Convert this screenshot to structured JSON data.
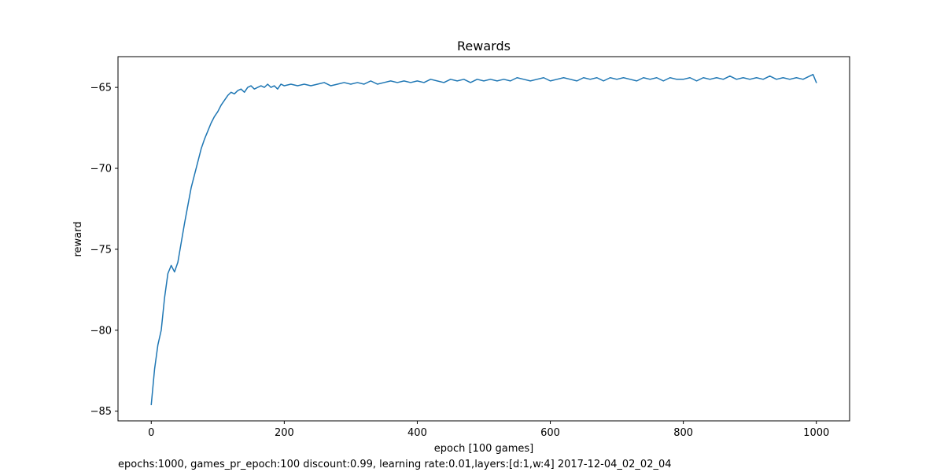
{
  "chart_data": {
    "type": "line",
    "title": "Rewards",
    "xlabel": "epoch [100 games]",
    "ylabel": "reward",
    "xlim": [
      -50,
      1050
    ],
    "ylim": [
      -85.6,
      -63.1
    ],
    "xticks": [
      0,
      200,
      400,
      600,
      800,
      1000
    ],
    "yticks": [
      -85,
      -80,
      -75,
      -70,
      -65
    ],
    "xtick_labels": [
      "0",
      "200",
      "400",
      "600",
      "800",
      "1000"
    ],
    "ytick_labels": [
      "−85",
      "−80",
      "−75",
      "−70",
      "−65"
    ],
    "grid": false,
    "series": [
      {
        "color": "#1f77b4",
        "x": [
          0,
          5,
          10,
          15,
          20,
          25,
          30,
          35,
          40,
          45,
          50,
          55,
          60,
          65,
          70,
          75,
          80,
          85,
          90,
          95,
          100,
          105,
          110,
          115,
          120,
          125,
          130,
          135,
          140,
          145,
          150,
          155,
          160,
          165,
          170,
          175,
          180,
          185,
          190,
          195,
          200,
          210,
          220,
          230,
          240,
          250,
          260,
          270,
          280,
          290,
          300,
          310,
          320,
          330,
          340,
          350,
          360,
          370,
          380,
          390,
          400,
          410,
          420,
          430,
          440,
          450,
          460,
          470,
          480,
          490,
          500,
          510,
          520,
          530,
          540,
          550,
          560,
          570,
          580,
          590,
          600,
          610,
          620,
          630,
          640,
          650,
          660,
          670,
          680,
          690,
          700,
          710,
          720,
          730,
          740,
          750,
          760,
          770,
          780,
          790,
          800,
          810,
          820,
          830,
          840,
          850,
          860,
          870,
          880,
          890,
          900,
          910,
          920,
          930,
          940,
          950,
          960,
          970,
          980,
          990,
          995,
          1000
        ],
        "y": [
          -84.6,
          -82.4,
          -80.9,
          -80.0,
          -78.0,
          -76.5,
          -76.0,
          -76.4,
          -75.8,
          -74.6,
          -73.4,
          -72.3,
          -71.2,
          -70.4,
          -69.6,
          -68.8,
          -68.2,
          -67.7,
          -67.2,
          -66.8,
          -66.5,
          -66.1,
          -65.8,
          -65.5,
          -65.3,
          -65.4,
          -65.2,
          -65.1,
          -65.3,
          -65.0,
          -64.9,
          -65.1,
          -65.0,
          -64.9,
          -65.0,
          -64.8,
          -65.0,
          -64.9,
          -65.1,
          -64.8,
          -64.9,
          -64.8,
          -64.9,
          -64.8,
          -64.9,
          -64.8,
          -64.7,
          -64.9,
          -64.8,
          -64.7,
          -64.8,
          -64.7,
          -64.8,
          -64.6,
          -64.8,
          -64.7,
          -64.6,
          -64.7,
          -64.6,
          -64.7,
          -64.6,
          -64.7,
          -64.5,
          -64.6,
          -64.7,
          -64.5,
          -64.6,
          -64.5,
          -64.7,
          -64.5,
          -64.6,
          -64.5,
          -64.6,
          -64.5,
          -64.6,
          -64.4,
          -64.5,
          -64.6,
          -64.5,
          -64.4,
          -64.6,
          -64.5,
          -64.4,
          -64.5,
          -64.6,
          -64.4,
          -64.5,
          -64.4,
          -64.6,
          -64.4,
          -64.5,
          -64.4,
          -64.5,
          -64.6,
          -64.4,
          -64.5,
          -64.4,
          -64.6,
          -64.4,
          -64.5,
          -64.5,
          -64.4,
          -64.6,
          -64.4,
          -64.5,
          -64.4,
          -64.5,
          -64.3,
          -64.5,
          -64.4,
          -64.5,
          -64.4,
          -64.5,
          -64.3,
          -64.5,
          -64.4,
          -64.5,
          -64.4,
          -64.5,
          -64.3,
          -64.2,
          -64.7
        ]
      }
    ]
  },
  "footnote": "epochs:1000, games_pr_epoch:100 discount:0.99, learning rate:0.01,layers:[d:1,w:4] 2017-12-04_02_02_04"
}
